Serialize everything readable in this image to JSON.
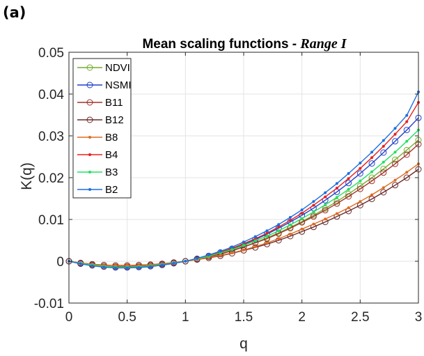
{
  "panel_label": "(a)",
  "chart_data": {
    "type": "line",
    "title": "Mean scaling functions - ",
    "title_italic": "Range I",
    "xlabel": "q",
    "ylabel": "K(q)",
    "xlim": [
      0,
      3
    ],
    "ylim": [
      -0.01,
      0.05
    ],
    "xticks": [
      0,
      0.5,
      1,
      1.5,
      2,
      2.5,
      3
    ],
    "xtick_labels": [
      "0",
      "0.5",
      "1",
      "1.5",
      "2",
      "2.5",
      "3"
    ],
    "yticks": [
      -0.01,
      0,
      0.01,
      0.02,
      0.03,
      0.04,
      0.05
    ],
    "ytick_labels": [
      "-0.01",
      "0",
      "0.01",
      "0.02",
      "0.03",
      "0.04",
      "0.05"
    ],
    "grid": true,
    "legend_position": "top-left",
    "x": [
      0,
      0.1,
      0.2,
      0.3,
      0.4,
      0.5,
      0.6,
      0.7,
      0.8,
      0.9,
      1.0,
      1.1,
      1.2,
      1.3,
      1.4,
      1.5,
      1.6,
      1.7,
      1.8,
      1.9,
      2.0,
      2.1,
      2.2,
      2.3,
      2.4,
      2.5,
      2.6,
      2.7,
      2.8,
      2.9,
      3.0
    ],
    "series": [
      {
        "name": "NDVI",
        "color": "#77ac30",
        "marker": "open-circle",
        "values": [
          0,
          -0.0005,
          -0.0009,
          -0.0012,
          -0.0013,
          -0.0013,
          -0.0012,
          -0.001,
          -0.0007,
          -0.0004,
          0,
          0.0005,
          0.0011,
          0.0018,
          0.0026,
          0.0035,
          0.0045,
          0.0056,
          0.0068,
          0.0081,
          0.0095,
          0.011,
          0.0126,
          0.0143,
          0.0161,
          0.018,
          0.02,
          0.0221,
          0.0243,
          0.0266,
          0.029
        ]
      },
      {
        "name": "NSMI",
        "color": "#2040c8",
        "marker": "open-circle",
        "values": [
          0,
          -0.0006,
          -0.001,
          -0.0013,
          -0.0015,
          -0.0015,
          -0.0014,
          -0.0012,
          -0.0009,
          -0.0005,
          0,
          0.0006,
          0.0013,
          0.0021,
          0.003,
          0.004,
          0.0052,
          0.0065,
          0.0079,
          0.0094,
          0.011,
          0.0127,
          0.0146,
          0.0166,
          0.0187,
          0.021,
          0.0234,
          0.026,
          0.0287,
          0.0314,
          0.0343
        ]
      },
      {
        "name": "B11",
        "color": "#a0302c",
        "marker": "open-circle",
        "values": [
          0,
          -0.0005,
          -0.0009,
          -0.0012,
          -0.0013,
          -0.0013,
          -0.0012,
          -0.001,
          -0.0007,
          -0.0004,
          0,
          0.0005,
          0.0011,
          0.0017,
          0.0025,
          0.0034,
          0.0044,
          0.0054,
          0.0066,
          0.0079,
          0.0093,
          0.0107,
          0.0122,
          0.0138,
          0.0155,
          0.0173,
          0.0192,
          0.0212,
          0.0233,
          0.0255,
          0.028
        ]
      },
      {
        "name": "B12",
        "color": "#6b2a2a",
        "marker": "open-circle",
        "values": [
          0,
          -0.0004,
          -0.0007,
          -0.0009,
          -0.001,
          -0.001,
          -0.0009,
          -0.0008,
          -0.0006,
          -0.0003,
          0,
          0.0004,
          0.0008,
          0.0013,
          0.0019,
          0.0026,
          0.0033,
          0.0041,
          0.005,
          0.006,
          0.0071,
          0.0082,
          0.0094,
          0.0107,
          0.012,
          0.0134,
          0.0149,
          0.0165,
          0.0182,
          0.02,
          0.022
        ]
      },
      {
        "name": "B8",
        "color": "#e06a20",
        "marker": "dot",
        "values": [
          0,
          -0.0004,
          -0.0007,
          -0.0009,
          -0.001,
          -0.001,
          -0.001,
          -0.0008,
          -0.0006,
          -0.0003,
          0,
          0.0004,
          0.0009,
          0.0014,
          0.002,
          0.0027,
          0.0035,
          0.0044,
          0.0054,
          0.0065,
          0.0077,
          0.0089,
          0.0101,
          0.0114,
          0.0128,
          0.0143,
          0.0159,
          0.0176,
          0.0194,
          0.0213,
          0.0233
        ]
      },
      {
        "name": "B4",
        "color": "#e8201c",
        "marker": "dot",
        "values": [
          0,
          -0.0006,
          -0.001,
          -0.0013,
          -0.0015,
          -0.0015,
          -0.0014,
          -0.0012,
          -0.0009,
          -0.0005,
          0,
          0.0006,
          0.0013,
          0.0022,
          0.0031,
          0.0042,
          0.0054,
          0.0067,
          0.0082,
          0.0098,
          0.0115,
          0.0134,
          0.0154,
          0.0175,
          0.0198,
          0.0222,
          0.0248,
          0.0275,
          0.0304,
          0.0334,
          0.038
        ]
      },
      {
        "name": "B3",
        "color": "#22e060",
        "marker": "dot",
        "values": [
          0,
          -0.0005,
          -0.0009,
          -0.0012,
          -0.0014,
          -0.0014,
          -0.0013,
          -0.0011,
          -0.0008,
          -0.0004,
          0,
          0.0006,
          0.0012,
          0.002,
          0.0028,
          0.0038,
          0.0049,
          0.006,
          0.0073,
          0.0087,
          0.0102,
          0.0118,
          0.0135,
          0.0153,
          0.0172,
          0.0192,
          0.0214,
          0.0237,
          0.0261,
          0.0287,
          0.0314
        ]
      },
      {
        "name": "B2",
        "color": "#1a6fe0",
        "marker": "dot",
        "values": [
          0,
          -0.0006,
          -0.0011,
          -0.0014,
          -0.0016,
          -0.0016,
          -0.0015,
          -0.0013,
          -0.0009,
          -0.0005,
          0,
          0.0007,
          0.0015,
          0.0024,
          0.0034,
          0.0046,
          0.0059,
          0.0073,
          0.0088,
          0.0105,
          0.0123,
          0.0143,
          0.0164,
          0.0186,
          0.021,
          0.0235,
          0.0261,
          0.0289,
          0.0318,
          0.0349,
          0.0405
        ]
      }
    ]
  }
}
